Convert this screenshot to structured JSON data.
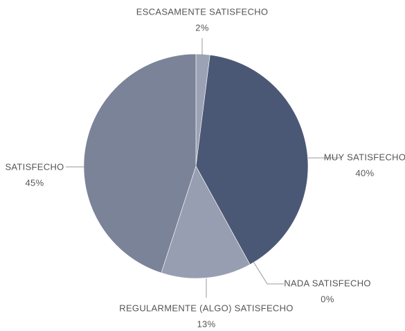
{
  "chart_data": {
    "type": "pie",
    "categories": [
      "ESCASAMENTE SATISFECHO",
      "MUY SATISFECHO",
      "NADA SATISFECHO",
      "REGULARMENTE (ALGO) SATISFECHO",
      "SATISFECHO"
    ],
    "values": [
      2,
      40,
      0,
      13,
      45
    ],
    "value_labels": [
      "2%",
      "40%",
      "0%",
      "13%",
      "45%"
    ],
    "colors": [
      "#9ca2b5",
      "#4b5875",
      "#8e94a7",
      "#989eb1",
      "#7b8399"
    ]
  }
}
